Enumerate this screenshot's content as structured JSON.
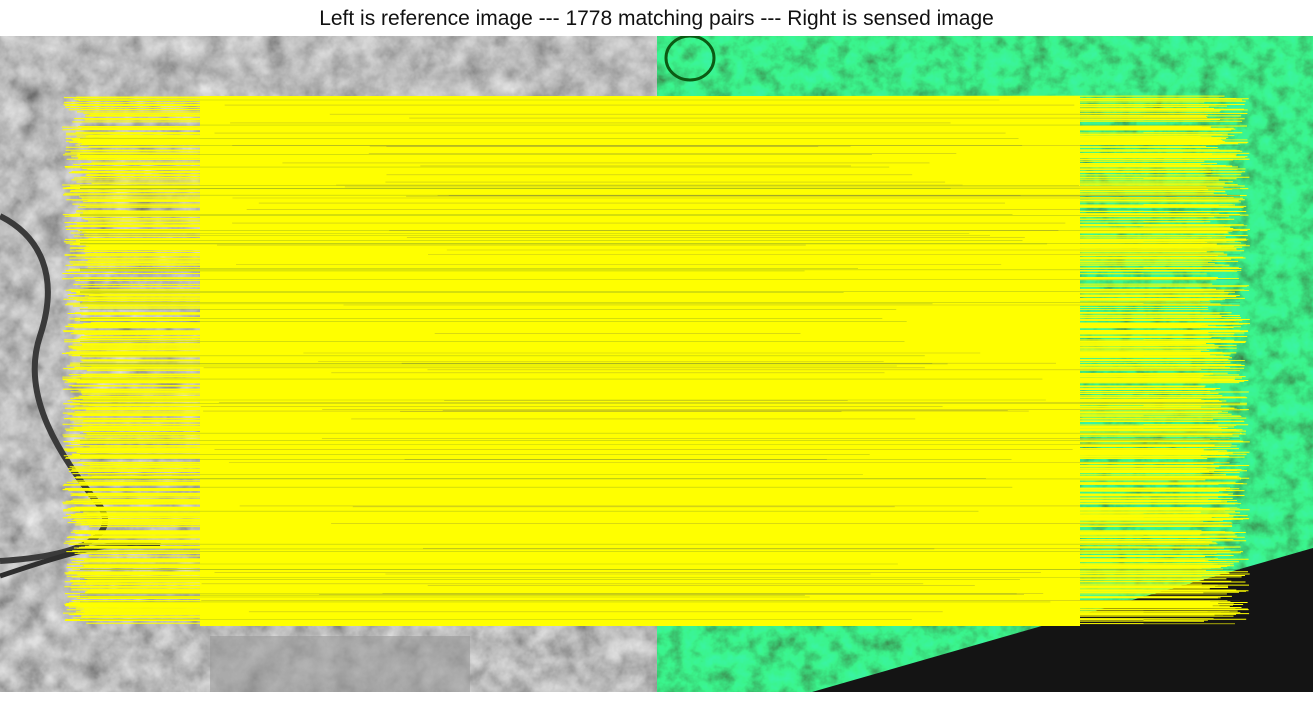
{
  "figure": {
    "title": "Left is reference image --- 1778 matching pairs --- Right is sensed image"
  },
  "images": {
    "reference": {
      "name": "reference-image",
      "rendering": "grayscale satellite image"
    },
    "sensed": {
      "name": "sensed-image",
      "rendering": "green-tinted satellite image with black no-data corner"
    }
  },
  "matches": {
    "count": 1778,
    "line_color": "#ffff00"
  },
  "colors": {
    "background": "#ffffff",
    "match_line": "#ffff00",
    "sensed_tint": "#22d83a",
    "no_data": "#141414",
    "title_text": "#111111"
  }
}
